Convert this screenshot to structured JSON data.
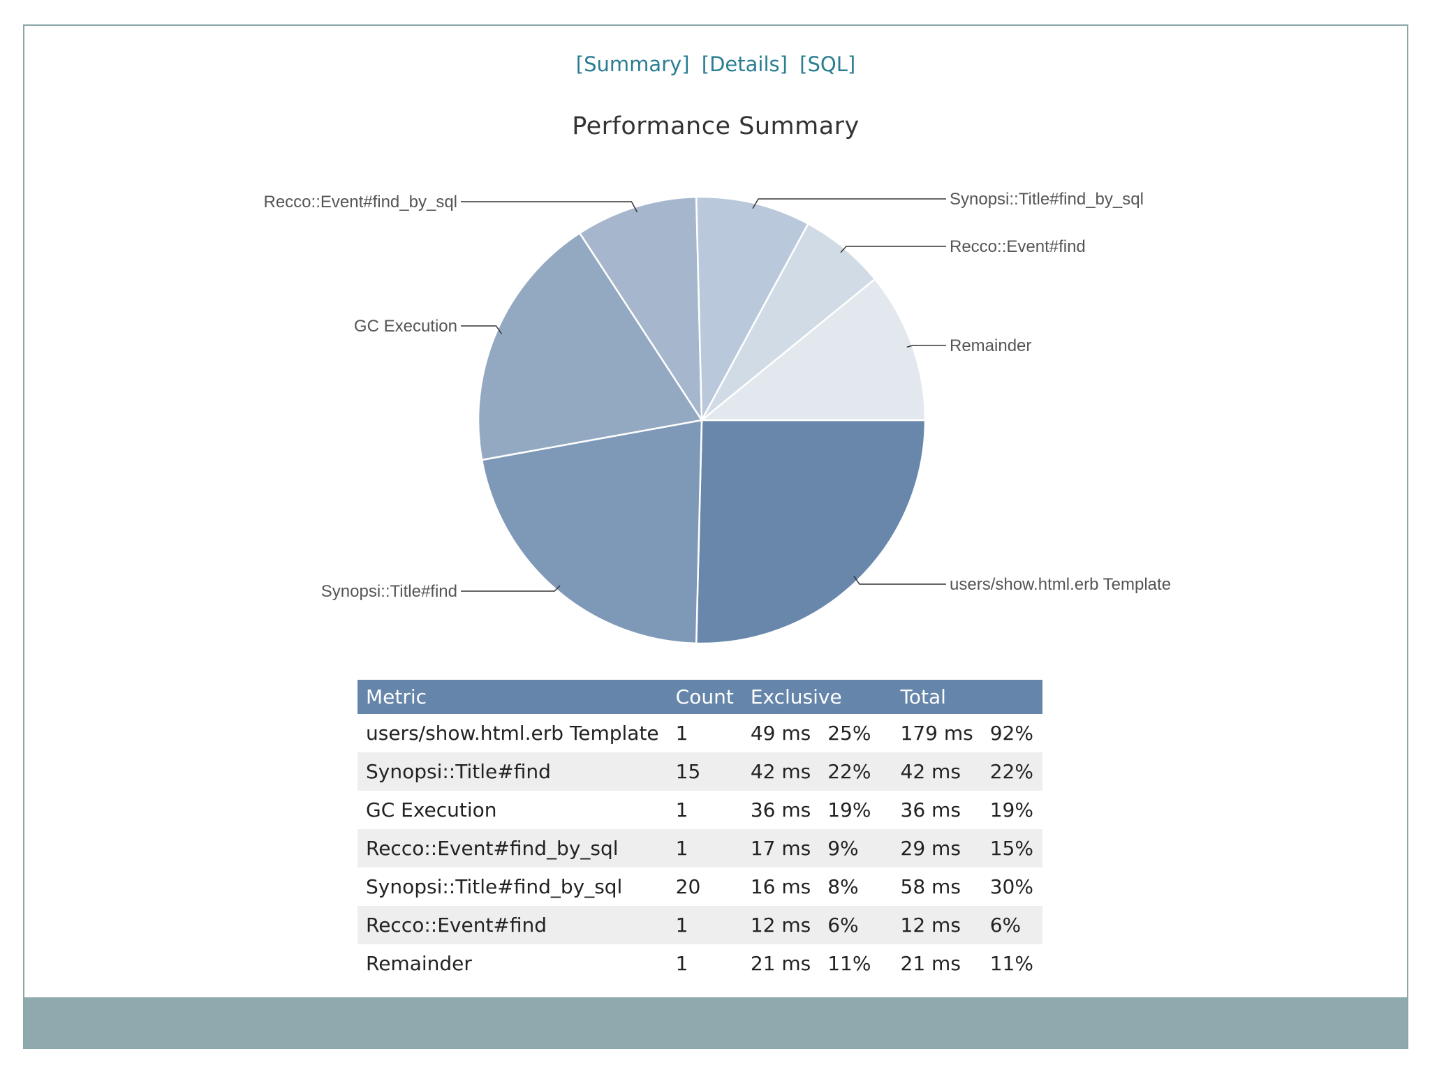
{
  "nav": {
    "summary": "[Summary]",
    "details": "[Details]",
    "sql": "[SQL]"
  },
  "page_title": "Performance Summary",
  "colors": {
    "header_bg": "#6585aa",
    "footer_bg": "#8eaaae",
    "link": "#2a7d92"
  },
  "chart_data": {
    "type": "pie",
    "title": "Performance Summary",
    "labels": [
      "users/show.html.erb Template",
      "Synopsi::Title#find",
      "GC Execution",
      "Recco::Event#find_by_sql",
      "Synopsi::Title#find_by_sql",
      "Recco::Event#find",
      "Remainder"
    ],
    "values": [
      49,
      42,
      36,
      17,
      16,
      12,
      21
    ],
    "unit": "ms",
    "colors": [
      "#6887ab",
      "#7e98b7",
      "#93a9c2",
      "#a6b7cd",
      "#b9c8da",
      "#d0dbe5",
      "#e3e8ee"
    ]
  },
  "table": {
    "headers": {
      "metric": "Metric",
      "count": "Count",
      "exclusive": "Exclusive",
      "total": "Total"
    },
    "rows": [
      {
        "metric": "users/show.html.erb Template",
        "count": "1",
        "excl_ms": "49 ms",
        "excl_pct": "25%",
        "total_ms": "179 ms",
        "total_pct": "92%"
      },
      {
        "metric": "Synopsi::Title#find",
        "count": "15",
        "excl_ms": "42 ms",
        "excl_pct": "22%",
        "total_ms": "42 ms",
        "total_pct": "22%"
      },
      {
        "metric": "GC Execution",
        "count": "1",
        "excl_ms": "36 ms",
        "excl_pct": "19%",
        "total_ms": "36 ms",
        "total_pct": "19%"
      },
      {
        "metric": "Recco::Event#find_by_sql",
        "count": "1",
        "excl_ms": "17 ms",
        "excl_pct": "9%",
        "total_ms": "29 ms",
        "total_pct": "15%"
      },
      {
        "metric": "Synopsi::Title#find_by_sql",
        "count": "20",
        "excl_ms": "16 ms",
        "excl_pct": "8%",
        "total_ms": "58 ms",
        "total_pct": "30%"
      },
      {
        "metric": "Recco::Event#find",
        "count": "1",
        "excl_ms": "12 ms",
        "excl_pct": "6%",
        "total_ms": "12 ms",
        "total_pct": "6%"
      },
      {
        "metric": "Remainder",
        "count": "1",
        "excl_ms": "21 ms",
        "excl_pct": "11%",
        "total_ms": "21 ms",
        "total_pct": "11%"
      }
    ]
  }
}
